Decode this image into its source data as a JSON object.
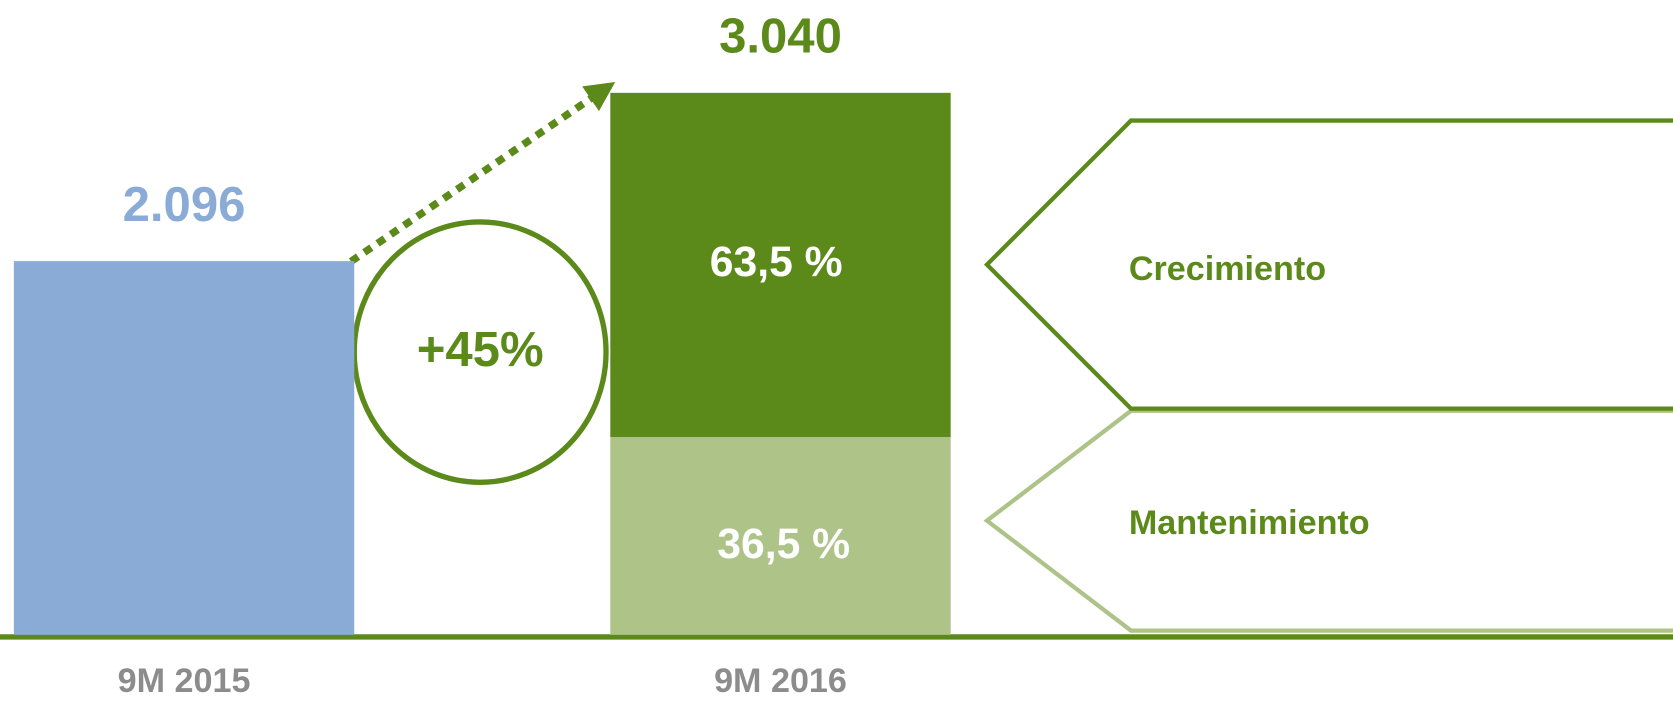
{
  "chart_data": {
    "type": "bar",
    "categories": [
      "9M 2015",
      "9M 2016"
    ],
    "values": [
      2096,
      3040
    ],
    "value_labels": [
      "2.096",
      "3.040"
    ],
    "colors": [
      "#8aabd6",
      "#5b8a1a"
    ],
    "segments": [
      {
        "name": "Mantenimiento",
        "color": "#adc388",
        "value": 36.5,
        "label": "36,5 %"
      },
      {
        "name": "Crecimiento",
        "color": "#5b8a1a",
        "value": 63.5,
        "label": "63,5 %"
      }
    ],
    "growth_label": "+45%"
  }
}
